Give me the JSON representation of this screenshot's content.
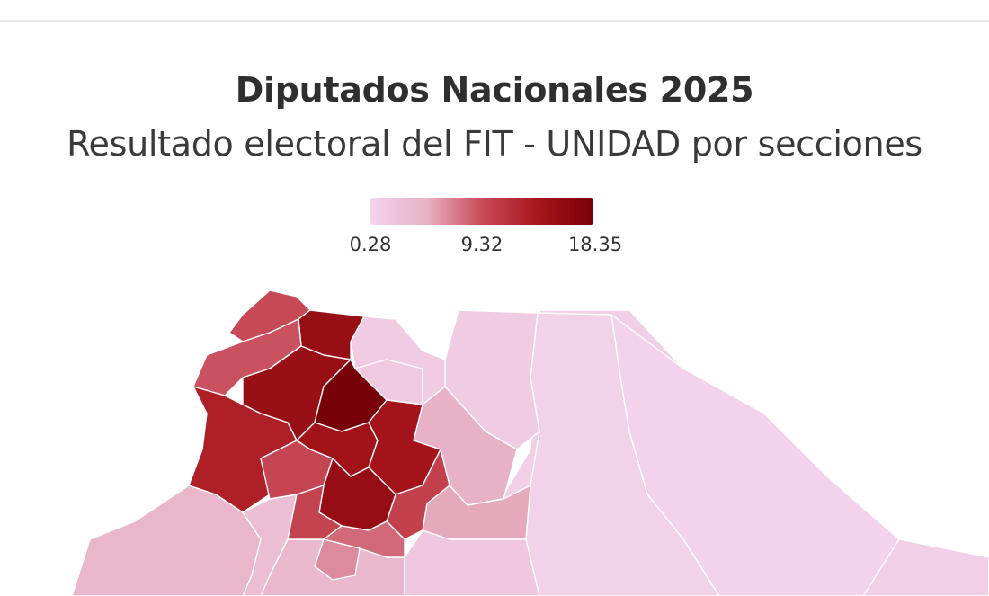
{
  "title": "Diputados Nacionales 2025",
  "subtitle": "Resultado electoral del FIT - UNIDAD por secciones",
  "legend": {
    "min": "0.28",
    "mid": "9.32",
    "max": "18.35",
    "colors": [
      "#f3d4ec",
      "#e8b2c6",
      "#c84b58",
      "#a8151c",
      "#780008"
    ]
  },
  "map": {
    "regions": [
      {
        "name": "region-nw-top",
        "value": 9.5
      },
      {
        "name": "region-north-dark",
        "value": 15.4
      },
      {
        "name": "region-west-band",
        "value": 9.0
      },
      {
        "name": "region-center-north",
        "value": 15.2
      },
      {
        "name": "region-core-darkest",
        "value": 18.35
      },
      {
        "name": "region-west-large",
        "value": 13.0
      },
      {
        "name": "region-north-pale",
        "value": 1.5
      },
      {
        "name": "region-north-pale-inner",
        "value": 1.8
      },
      {
        "name": "region-center-mid",
        "value": 14.5
      },
      {
        "name": "region-center-medium",
        "value": 9.8
      },
      {
        "name": "region-east-center-dark",
        "value": 14.2
      },
      {
        "name": "region-east-medium",
        "value": 10.2
      },
      {
        "name": "region-ring-dark",
        "value": 15.5
      },
      {
        "name": "region-south-center-medium",
        "value": 10.0
      },
      {
        "name": "region-south-small-1",
        "value": 8.0
      },
      {
        "name": "region-south-small-2",
        "value": 6.5
      },
      {
        "name": "region-east-light",
        "value": 4.8
      },
      {
        "name": "region-east-light-2",
        "value": 5.2
      },
      {
        "name": "region-northeast-pale",
        "value": 1.4
      },
      {
        "name": "region-east-pale-large",
        "value": 0.6
      },
      {
        "name": "region-far-east-pale",
        "value": 0.4
      },
      {
        "name": "region-southwest-pink",
        "value": 4.2
      },
      {
        "name": "region-southwest-mid",
        "value": 3.2
      },
      {
        "name": "region-south-pale-strip",
        "value": 2.0
      },
      {
        "name": "region-south-medium",
        "value": 4.0
      },
      {
        "name": "region-southeast-pale",
        "value": 0.9
      }
    ]
  }
}
